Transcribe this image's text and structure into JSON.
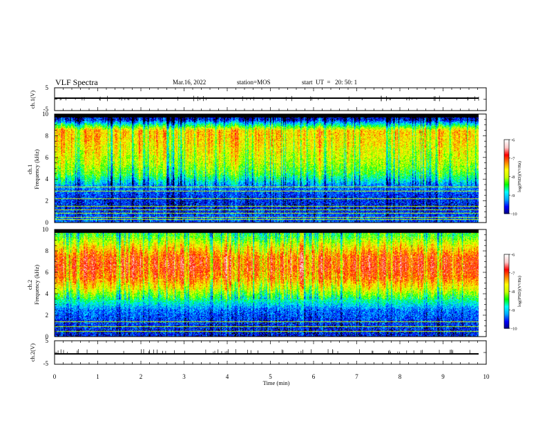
{
  "header": {
    "title": "VLF Spectra",
    "date": "Mar.16, 2022",
    "station": "station=MOS",
    "start": "start  UT  =   20: 50: 1"
  },
  "chart_data": [
    {
      "type": "line",
      "name": "ch.1 waveform",
      "ylabel": "ch.1(V)",
      "ylim": [
        -5,
        5
      ],
      "yticks": [
        "5",
        "-5"
      ],
      "xlim": [
        0,
        10
      ],
      "baseline": 0
    },
    {
      "type": "heatmap",
      "ylabel_line1": "ch.1",
      "ylabel_line2": "Frequency (kHz)",
      "ylim": [
        0,
        10
      ],
      "yticks": [
        "0",
        "2",
        "4",
        "6",
        "8",
        "10"
      ],
      "xlim": [
        0,
        10
      ],
      "colorbar": {
        "range": [
          -10,
          -6
        ],
        "ticks": [
          "-6",
          "-7",
          "-8",
          "-9",
          "-10"
        ],
        "label": "log(PSD)(V²/Hz)"
      },
      "intensity_profile": [
        {
          "f": 0.5,
          "level": -9.4
        },
        {
          "f": 1.5,
          "level": -9.6
        },
        {
          "f": 2.5,
          "level": -9.5
        },
        {
          "f": 3.5,
          "level": -9.2
        },
        {
          "f": 4.5,
          "level": -8.4
        },
        {
          "f": 5.5,
          "level": -8.0
        },
        {
          "f": 6.5,
          "level": -7.8
        },
        {
          "f": 7.5,
          "level": -7.6
        },
        {
          "f": 8.5,
          "level": -7.5
        },
        {
          "f": 9.5,
          "level": -9.7
        }
      ],
      "tones_khz": [
        0.3,
        0.5,
        0.9,
        1.2,
        1.5,
        2.2,
        2.9,
        3.3
      ]
    },
    {
      "type": "heatmap",
      "ylabel_line1": "ch.2",
      "ylabel_line2": "Frequency (kHz)",
      "ylim": [
        0,
        10
      ],
      "yticks": [
        "0",
        "2",
        "4",
        "6",
        "8",
        "10"
      ],
      "xlim": [
        0,
        10
      ],
      "colorbar": {
        "range": [
          -10,
          -6
        ],
        "ticks": [
          "-6",
          "-7",
          "-8",
          "-9",
          "-10"
        ],
        "label": "log(PSD)(V²/Hz)"
      },
      "intensity_profile": [
        {
          "f": 0.5,
          "level": -9.6
        },
        {
          "f": 1.5,
          "level": -9.5
        },
        {
          "f": 2.5,
          "level": -9.3
        },
        {
          "f": 3.5,
          "level": -8.6
        },
        {
          "f": 4.5,
          "level": -7.8
        },
        {
          "f": 5.5,
          "level": -7.2
        },
        {
          "f": 6.5,
          "level": -7.0
        },
        {
          "f": 7.5,
          "level": -7.1
        },
        {
          "f": 8.5,
          "level": -7.7
        },
        {
          "f": 9.5,
          "level": -8.4
        }
      ],
      "tones_khz": [
        0.5,
        1.0,
        1.4
      ]
    },
    {
      "type": "line",
      "name": "ch.2 waveform",
      "ylabel": "ch.2(V)",
      "ylim": [
        -5,
        5
      ],
      "yticks": [
        "5",
        "-5"
      ],
      "xlim": [
        0,
        10
      ],
      "baseline": 0
    }
  ],
  "x_axis": {
    "label": "Time (min)",
    "ticks": [
      "0",
      "1",
      "2",
      "3",
      "4",
      "5",
      "6",
      "7",
      "8",
      "9",
      "10"
    ]
  },
  "colors": {
    "background": "#000000",
    "colormap": [
      "#000080",
      "#0000ff",
      "#00aaff",
      "#00ffff",
      "#00ff00",
      "#c8ff00",
      "#ffff00",
      "#ff8000",
      "#ff0000",
      "#ffc8c8",
      "#ffffff"
    ]
  }
}
